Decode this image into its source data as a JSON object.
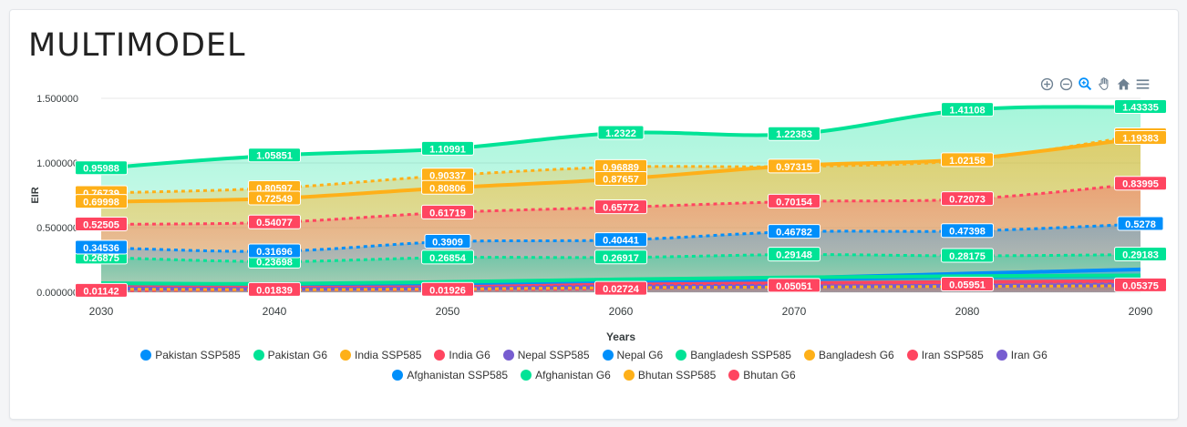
{
  "title": "MULTIMODEL",
  "toolbar": [
    "zoom-in-icon",
    "zoom-out-icon",
    "magnifier-icon",
    "pan-hand-icon",
    "home-reset-icon",
    "menu-icon"
  ],
  "chart_data": {
    "type": "area",
    "xlabel": "Years",
    "ylabel": "EIR",
    "x": [
      2030,
      2040,
      2050,
      2060,
      2070,
      2080,
      2090
    ],
    "ylim": [
      0,
      1.5
    ],
    "y_ticks": [
      "0.000000",
      "0.500000",
      "1.000000",
      "1.500000"
    ],
    "x_ticks": [
      "2030",
      "2040",
      "2050",
      "2060",
      "2070",
      "2080",
      "2090"
    ],
    "legend_position": "bottom",
    "grid": true,
    "series": [
      {
        "name": "Pakistan SSP585",
        "color": "#008ffb",
        "dashed": false,
        "values": [
          0.0509,
          0.0455,
          0.05,
          0.082,
          0.098,
          0.12,
          0.13
        ],
        "labels": []
      },
      {
        "name": "Pakistan G6",
        "color": "#00e396",
        "dashed": false,
        "values": [
          0.95988,
          1.05851,
          1.10991,
          1.2322,
          1.22383,
          1.41108,
          1.43335
        ],
        "labels": [
          "0.95988",
          "1.05851",
          "1.10991",
          "1.2322",
          "1.22383",
          "1.41108",
          "1.43335"
        ]
      },
      {
        "name": "India SSP585",
        "color": "#feb019",
        "dashed": true,
        "values": [
          0.76739,
          0.80597,
          0.90337,
          0.96889,
          0.97315,
          1.02158,
          1.21509
        ],
        "labels": [
          "0.76739",
          "0.80597",
          "0.90337",
          "0.96889",
          "0.97315",
          "1.02158",
          "1.21509"
        ]
      },
      {
        "name": "India G6",
        "color": "#ff4560",
        "dashed": false,
        "values": [
          0.04,
          0.035,
          0.04,
          0.06,
          0.07,
          0.08,
          0.085
        ],
        "labels": []
      },
      {
        "name": "Nepal SSP585",
        "color": "#775dd0",
        "dashed": true,
        "values": [
          0.035,
          0.03,
          0.035,
          0.05,
          0.055,
          0.06,
          0.065
        ],
        "labels": []
      },
      {
        "name": "Nepal G6",
        "color": "#008ffb",
        "dashed": false,
        "values": [
          0.05,
          0.045,
          0.065,
          0.095,
          0.11,
          0.145,
          0.17651
        ],
        "labels": []
      },
      {
        "name": "Bangladesh SSP585",
        "color": "#00e396",
        "dashed": true,
        "values": [
          0.26875,
          0.23698,
          0.26854,
          0.26917,
          0.29148,
          0.28175,
          0.29183
        ],
        "labels": [
          "0.26875",
          "0.23698",
          "0.26854",
          "0.26917",
          "0.29148",
          "0.28175",
          "0.29183"
        ]
      },
      {
        "name": "Bangladesh G6",
        "color": "#feb019",
        "dashed": false,
        "values": [
          0.69998,
          0.72549,
          0.80806,
          0.87657,
          0.98,
          1.03,
          1.19383
        ],
        "labels": [
          "0.69998",
          "0.72549",
          "0.80806",
          "0.87657",
          "",
          "",
          "1.19383"
        ]
      },
      {
        "name": "Iran SSP585",
        "color": "#ff4560",
        "dashed": true,
        "values": [
          0.52505,
          0.54077,
          0.61719,
          0.65772,
          0.70154,
          0.72073,
          0.83995
        ],
        "labels": [
          "0.52505",
          "0.54077",
          "0.61719",
          "0.65772",
          "0.70154",
          "0.72073",
          "0.83995"
        ]
      },
      {
        "name": "Iran G6",
        "color": "#775dd0",
        "dashed": false,
        "values": [
          0.03,
          0.025,
          0.03,
          0.04,
          0.045,
          0.05,
          0.055
        ],
        "labels": []
      },
      {
        "name": "Afghanistan SSP585",
        "color": "#008ffb",
        "dashed": true,
        "values": [
          0.34536,
          0.31696,
          0.3909,
          0.40441,
          0.46782,
          0.47398,
          0.5278
        ],
        "labels": [
          "0.34536",
          "0.31696",
          "0.3909",
          "0.40441",
          "0.46782",
          "0.47398",
          "0.5278"
        ]
      },
      {
        "name": "Afghanistan G6",
        "color": "#00e396",
        "dashed": false,
        "values": [
          0.07,
          0.065,
          0.08,
          0.1,
          0.115,
          0.125,
          0.13
        ],
        "labels": []
      },
      {
        "name": "Bhutan SSP585",
        "color": "#feb019",
        "dashed": true,
        "values": [
          0.025,
          0.02,
          0.025,
          0.035,
          0.04,
          0.045,
          0.05
        ],
        "labels": []
      },
      {
        "name": "Bhutan G6",
        "color": "#ff4560",
        "dashed": true,
        "values": [
          0.01142,
          0.01839,
          0.01926,
          0.02724,
          0.05051,
          0.05951,
          0.05375
        ],
        "labels": [
          "0.01142",
          "0.01839",
          "0.01926",
          "0.02724",
          "0.05051",
          "0.05951",
          "0.05375"
        ]
      }
    ]
  }
}
